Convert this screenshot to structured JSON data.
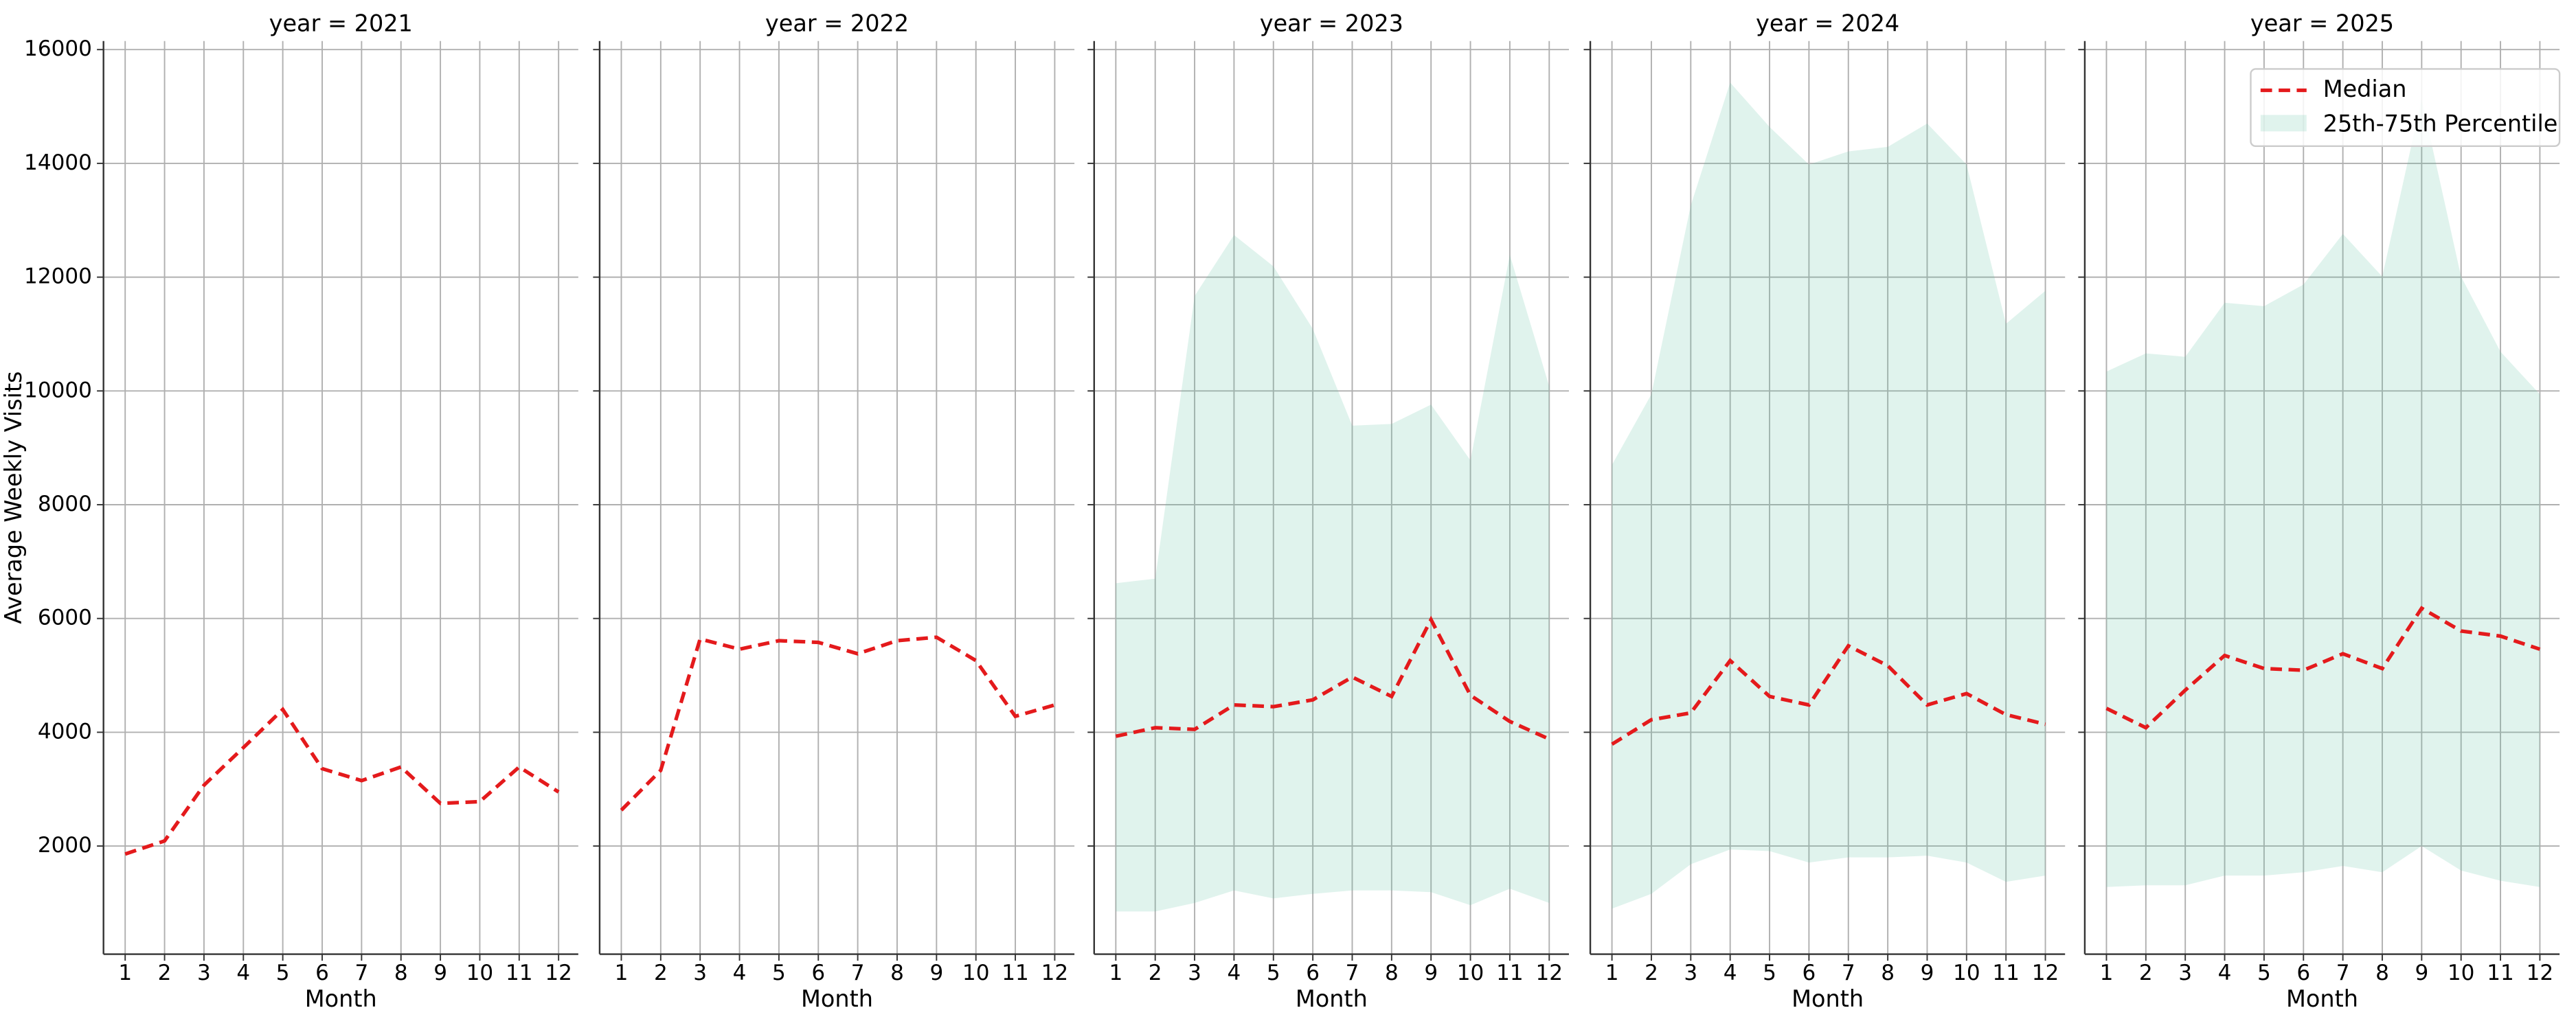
{
  "chart_data": [
    {
      "type": "line",
      "title": "year = 2021",
      "xlabel": "Month",
      "ylabel": "Average Weekly Visits",
      "x": [
        1,
        2,
        3,
        4,
        5,
        6,
        7,
        8,
        9,
        10,
        11,
        12
      ],
      "xlim": [
        0.45,
        12.5
      ],
      "xticks": [
        1,
        2,
        3,
        4,
        5,
        6,
        7,
        8,
        9,
        10,
        11,
        12
      ],
      "ylim": [
        100,
        16150
      ],
      "yticks": [
        2000,
        4000,
        6000,
        8000,
        10000,
        12000,
        14000,
        16000
      ],
      "grid": true,
      "series": [
        {
          "color": "#e41a1c",
          "values": [
            1860,
            2090,
            3070,
            3730,
            4400,
            3360,
            3150,
            3390,
            2750,
            2780,
            3390,
            2950
          ]
        }
      ]
    },
    {
      "type": "line",
      "title": "year = 2022",
      "xlabel": "Month",
      "x": [
        1,
        2,
        3,
        4,
        5,
        6,
        7,
        8,
        9,
        10,
        11,
        12
      ],
      "xlim": [
        0.45,
        12.5
      ],
      "xticks": [
        1,
        2,
        3,
        4,
        5,
        6,
        7,
        8,
        9,
        10,
        11,
        12
      ],
      "ylim": [
        100,
        16150
      ],
      "yticks": [
        2000,
        4000,
        6000,
        8000,
        10000,
        12000,
        14000,
        16000
      ],
      "grid": true,
      "series": [
        {
          "color": "#e41a1c",
          "values": [
            2630,
            3330,
            5640,
            5460,
            5610,
            5580,
            5380,
            5610,
            5670,
            5260,
            4280,
            4480
          ]
        }
      ]
    },
    {
      "type": "line",
      "title": "year = 2023",
      "xlabel": "Month",
      "x": [
        1,
        2,
        3,
        4,
        5,
        6,
        7,
        8,
        9,
        10,
        11,
        12
      ],
      "xlim": [
        0.45,
        12.5
      ],
      "xticks": [
        1,
        2,
        3,
        4,
        5,
        6,
        7,
        8,
        9,
        10,
        11,
        12
      ],
      "ylim": [
        100,
        16150
      ],
      "yticks": [
        2000,
        4000,
        6000,
        8000,
        10000,
        12000,
        14000,
        16000
      ],
      "grid": true,
      "series": [
        {
          "color": "#e41a1c",
          "values": [
            3930,
            4080,
            4050,
            4480,
            4450,
            4570,
            4970,
            4630,
            5980,
            4650,
            4190,
            3880
          ]
        }
      ],
      "band": {
        "color": "#66c2a5",
        "lower": [
          850,
          850,
          1000,
          1220,
          1080,
          1160,
          1220,
          1220,
          1190,
          960,
          1250,
          1000
        ],
        "upper": [
          6620,
          6700,
          11670,
          12740,
          12190,
          11090,
          9390,
          9420,
          9760,
          8780,
          12390,
          10080
        ]
      }
    },
    {
      "type": "line",
      "title": "year = 2024",
      "xlabel": "Month",
      "x": [
        1,
        2,
        3,
        4,
        5,
        6,
        7,
        8,
        9,
        10,
        11,
        12
      ],
      "xlim": [
        0.45,
        12.5
      ],
      "xticks": [
        1,
        2,
        3,
        4,
        5,
        6,
        7,
        8,
        9,
        10,
        11,
        12
      ],
      "ylim": [
        100,
        16150
      ],
      "yticks": [
        2000,
        4000,
        6000,
        8000,
        10000,
        12000,
        14000,
        16000
      ],
      "grid": true,
      "series": [
        {
          "color": "#e41a1c",
          "values": [
            3790,
            4220,
            4340,
            5260,
            4630,
            4480,
            5520,
            5170,
            4480,
            4680,
            4310,
            4140
          ]
        }
      ],
      "band": {
        "color": "#66c2a5",
        "lower": [
          900,
          1160,
          1680,
          1940,
          1910,
          1710,
          1800,
          1800,
          1830,
          1710,
          1370,
          1480
        ],
        "upper": [
          8700,
          9940,
          13260,
          15420,
          14640,
          13980,
          14210,
          14290,
          14700,
          13980,
          11180,
          11760
        ]
      }
    },
    {
      "type": "line",
      "title": "year = 2025",
      "xlabel": "Month",
      "x": [
        1,
        2,
        3,
        4,
        5,
        6,
        7,
        8,
        9,
        10,
        11,
        12
      ],
      "xlim": [
        0.45,
        12.5
      ],
      "xticks": [
        1,
        2,
        3,
        4,
        5,
        6,
        7,
        8,
        9,
        10,
        11,
        12
      ],
      "ylim": [
        100,
        16150
      ],
      "yticks": [
        2000,
        4000,
        6000,
        8000,
        10000,
        12000,
        14000,
        16000
      ],
      "grid": true,
      "legend": "upper right",
      "series": [
        {
          "name": "Median",
          "color": "#e41a1c",
          "values": [
            4420,
            4080,
            4740,
            5350,
            5120,
            5090,
            5380,
            5120,
            6180,
            5780,
            5690,
            5460
          ]
        }
      ],
      "band": {
        "name": "25th-75th Percentile",
        "color": "#66c2a5",
        "lower": [
          1280,
          1310,
          1310,
          1480,
          1480,
          1540,
          1650,
          1540,
          2000,
          1570,
          1390,
          1280
        ],
        "upper": [
          10340,
          10660,
          10600,
          11550,
          11490,
          11870,
          12760,
          12010,
          15130,
          12010,
          10690,
          9940
        ]
      }
    }
  ]
}
